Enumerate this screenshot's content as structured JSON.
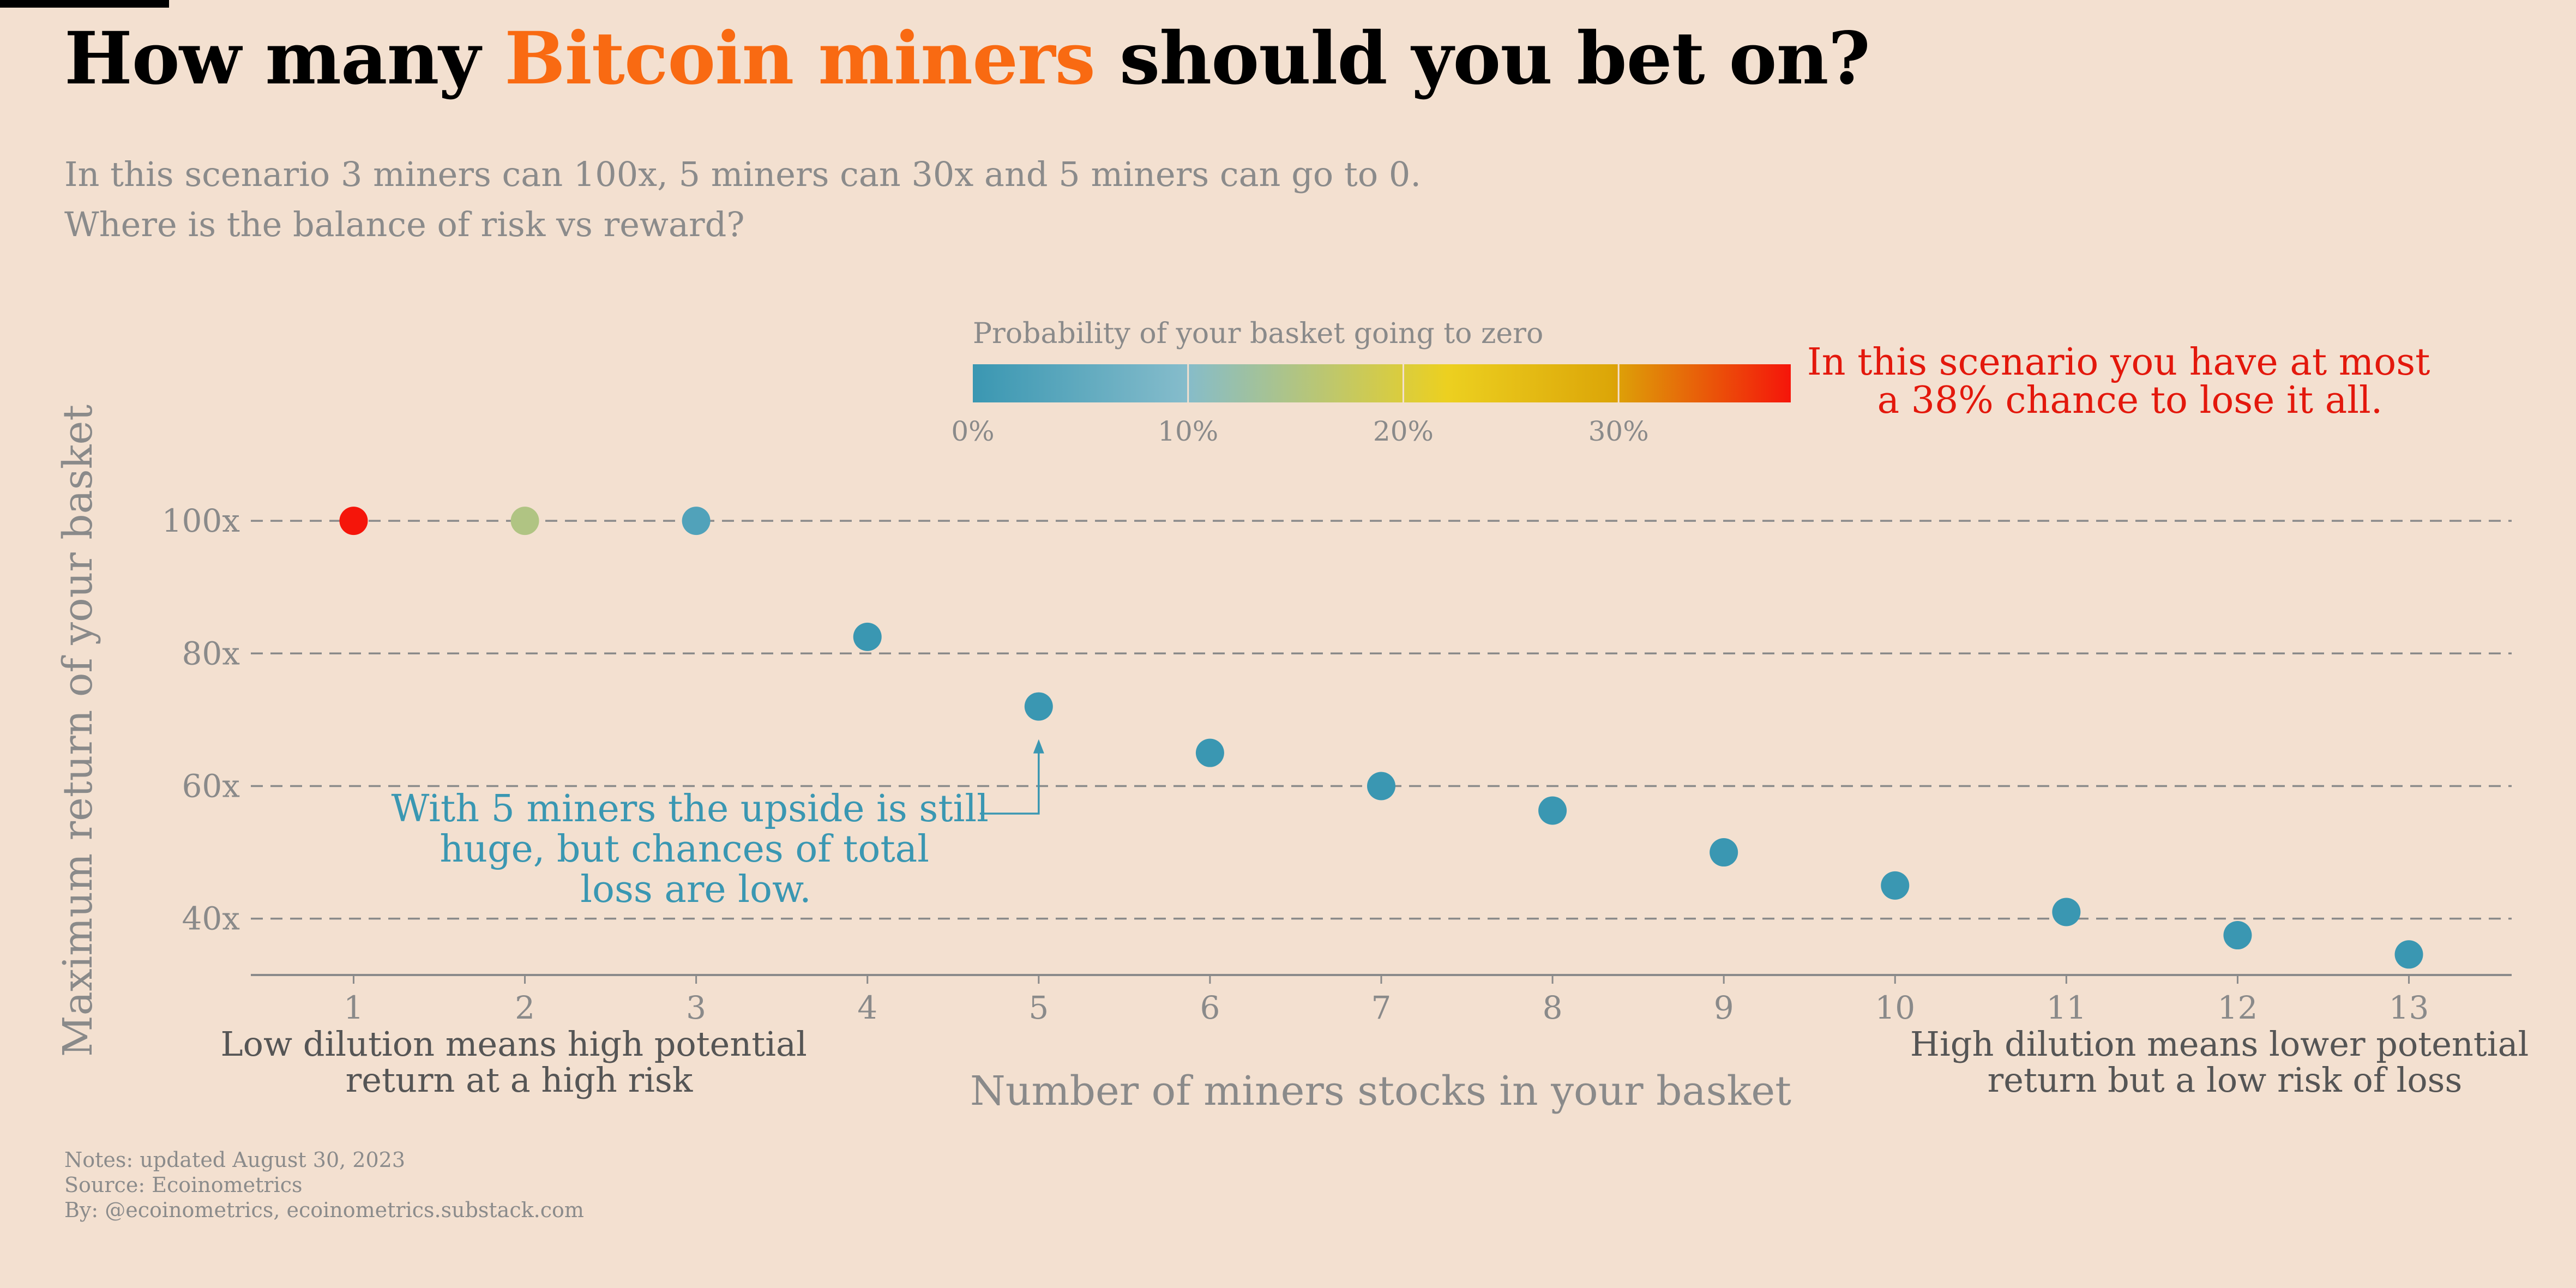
{
  "title": {
    "prefix": "How many ",
    "highlight": "Bitcoin miners",
    "suffix": " should you bet on?"
  },
  "subtitle": {
    "line1": "In this scenario 3 miners can 100x, 5 miners can 30x and 5 miners can go to 0.",
    "line2": "Where is the balance of risk vs reward?"
  },
  "notes": {
    "line1": "Notes: updated August 30, 2023",
    "line2": "Source: Ecoinometrics",
    "line3": "By: @ecoinometrics, ecoinometrics.substack.com"
  },
  "colors": {
    "background": "#f3e0d0",
    "highlight": "#f96a12",
    "annotation_blue": "#3a97b2",
    "annotation_red": "#e3180c",
    "colorbar_stops": [
      "#3a97b2",
      "#85bccb",
      "#ecd020",
      "#dca608",
      "#f5150a"
    ]
  },
  "chart_data": {
    "type": "scatter",
    "xlabel": "Number of miners stocks in your basket",
    "ylabel": "Maximum return of your basket",
    "x_ticks": [
      1,
      2,
      3,
      4,
      5,
      6,
      7,
      8,
      9,
      10,
      11,
      12,
      13
    ],
    "y_ticks": [
      40,
      60,
      80,
      100
    ],
    "y_tick_labels": [
      "40x",
      "60x",
      "80x",
      "100x"
    ],
    "xlim": [
      0.4,
      13.6
    ],
    "ylim": [
      31.5,
      107
    ],
    "grid": "horizontal dashed at y ticks",
    "x": [
      1,
      2,
      3,
      4,
      5,
      6,
      7,
      8,
      9,
      10,
      11,
      12,
      13
    ],
    "y": [
      100,
      100,
      100,
      82.5,
      72,
      65,
      60,
      56.3,
      50,
      45,
      41,
      37.5,
      34.6
    ],
    "zero_probability": [
      0.38,
      0.15,
      0.03,
      0.0,
      0.0,
      0.0,
      0.0,
      0.0,
      0.0,
      0.0,
      0.0,
      0.0,
      0.0
    ],
    "colorbar": {
      "label": "Probability of your basket going to zero",
      "range": [
        0,
        0.38
      ],
      "ticks": [
        0,
        0.1,
        0.2,
        0.3
      ],
      "tick_labels": [
        "0%",
        "10%",
        "20%",
        "30%"
      ]
    },
    "annotations": {
      "max_risk": [
        "In this scenario you have at most",
        "a 38% chance to lose it all."
      ],
      "five_miners": [
        "With 5 miners the upside is still",
        "huge, but chances of total",
        "loss are low."
      ],
      "low_dilution": [
        "Low dilution means high potential",
        "return at a high risk"
      ],
      "high_dilution": [
        "High dilution means lower potential",
        "return but a low risk of loss"
      ]
    }
  }
}
